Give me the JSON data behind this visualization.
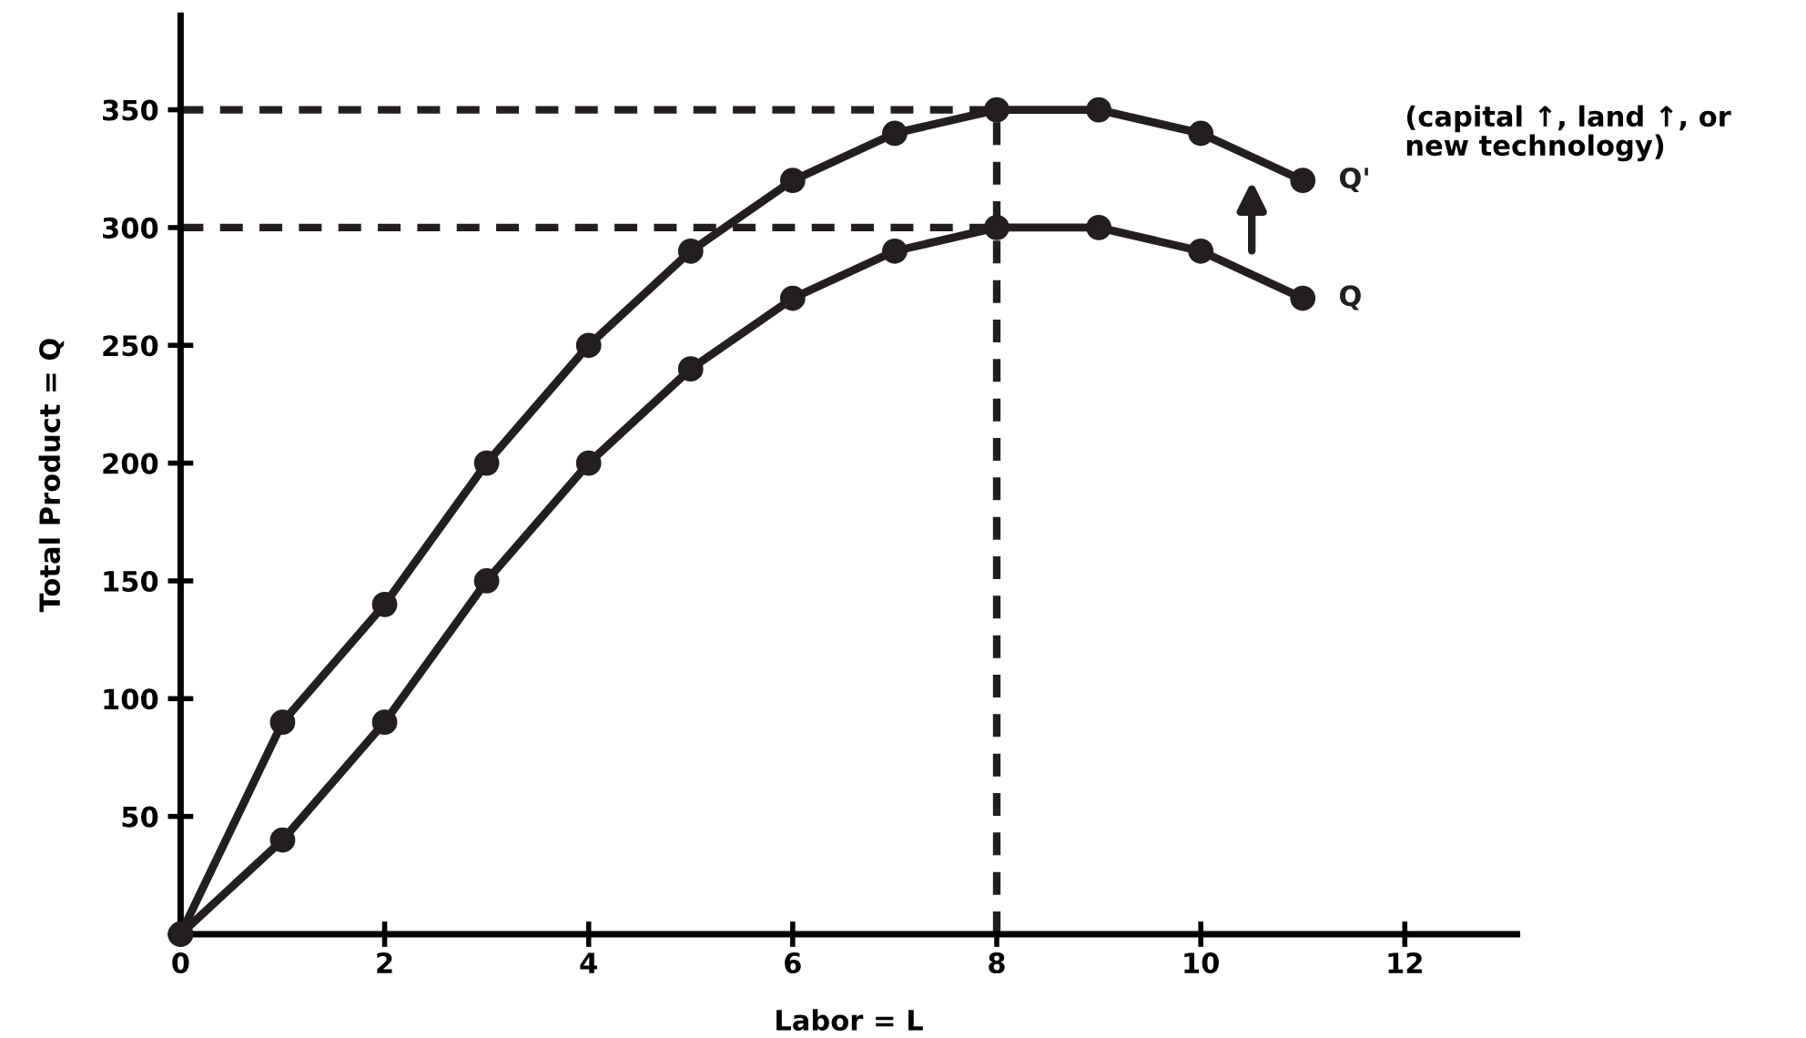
{
  "chart_data": {
    "type": "line",
    "xlabel": "Labor = L",
    "ylabel": "Total Product = Q",
    "x": [
      0,
      1,
      2,
      3,
      4,
      5,
      6,
      7,
      8,
      9,
      10,
      11
    ],
    "series": [
      {
        "name": "Q'",
        "color": "#231f20",
        "values": [
          0,
          90,
          140,
          200,
          250,
          290,
          320,
          340,
          350,
          350,
          340,
          320
        ]
      },
      {
        "name": "Q",
        "color": "#231f20",
        "values": [
          0,
          40,
          90,
          150,
          200,
          240,
          270,
          290,
          300,
          300,
          290,
          270
        ]
      }
    ],
    "xlim": [
      0,
      13.1
    ],
    "ylim": [
      0,
      390
    ],
    "xticks": [
      0,
      2,
      4,
      6,
      8,
      10,
      12
    ],
    "yticks": [
      {
        "value": 0,
        "label": null
      },
      50,
      100,
      150,
      200,
      250,
      300,
      350
    ],
    "ref_lines": [
      {
        "axis": "y",
        "value": 350,
        "line_style": "dashed",
        "color": "#231f20"
      },
      {
        "axis": "y",
        "value": 300,
        "line_style": "dashed",
        "color": "#231f20"
      },
      {
        "axis": "x",
        "value": 8,
        "line_style": "dashed",
        "color": "#231f20"
      }
    ],
    "annotations": [
      "(capital ↑, land ↑, or\nnew technology)"
    ],
    "marker": "circle",
    "line_style": "solid",
    "grid": false,
    "legend": false
  }
}
